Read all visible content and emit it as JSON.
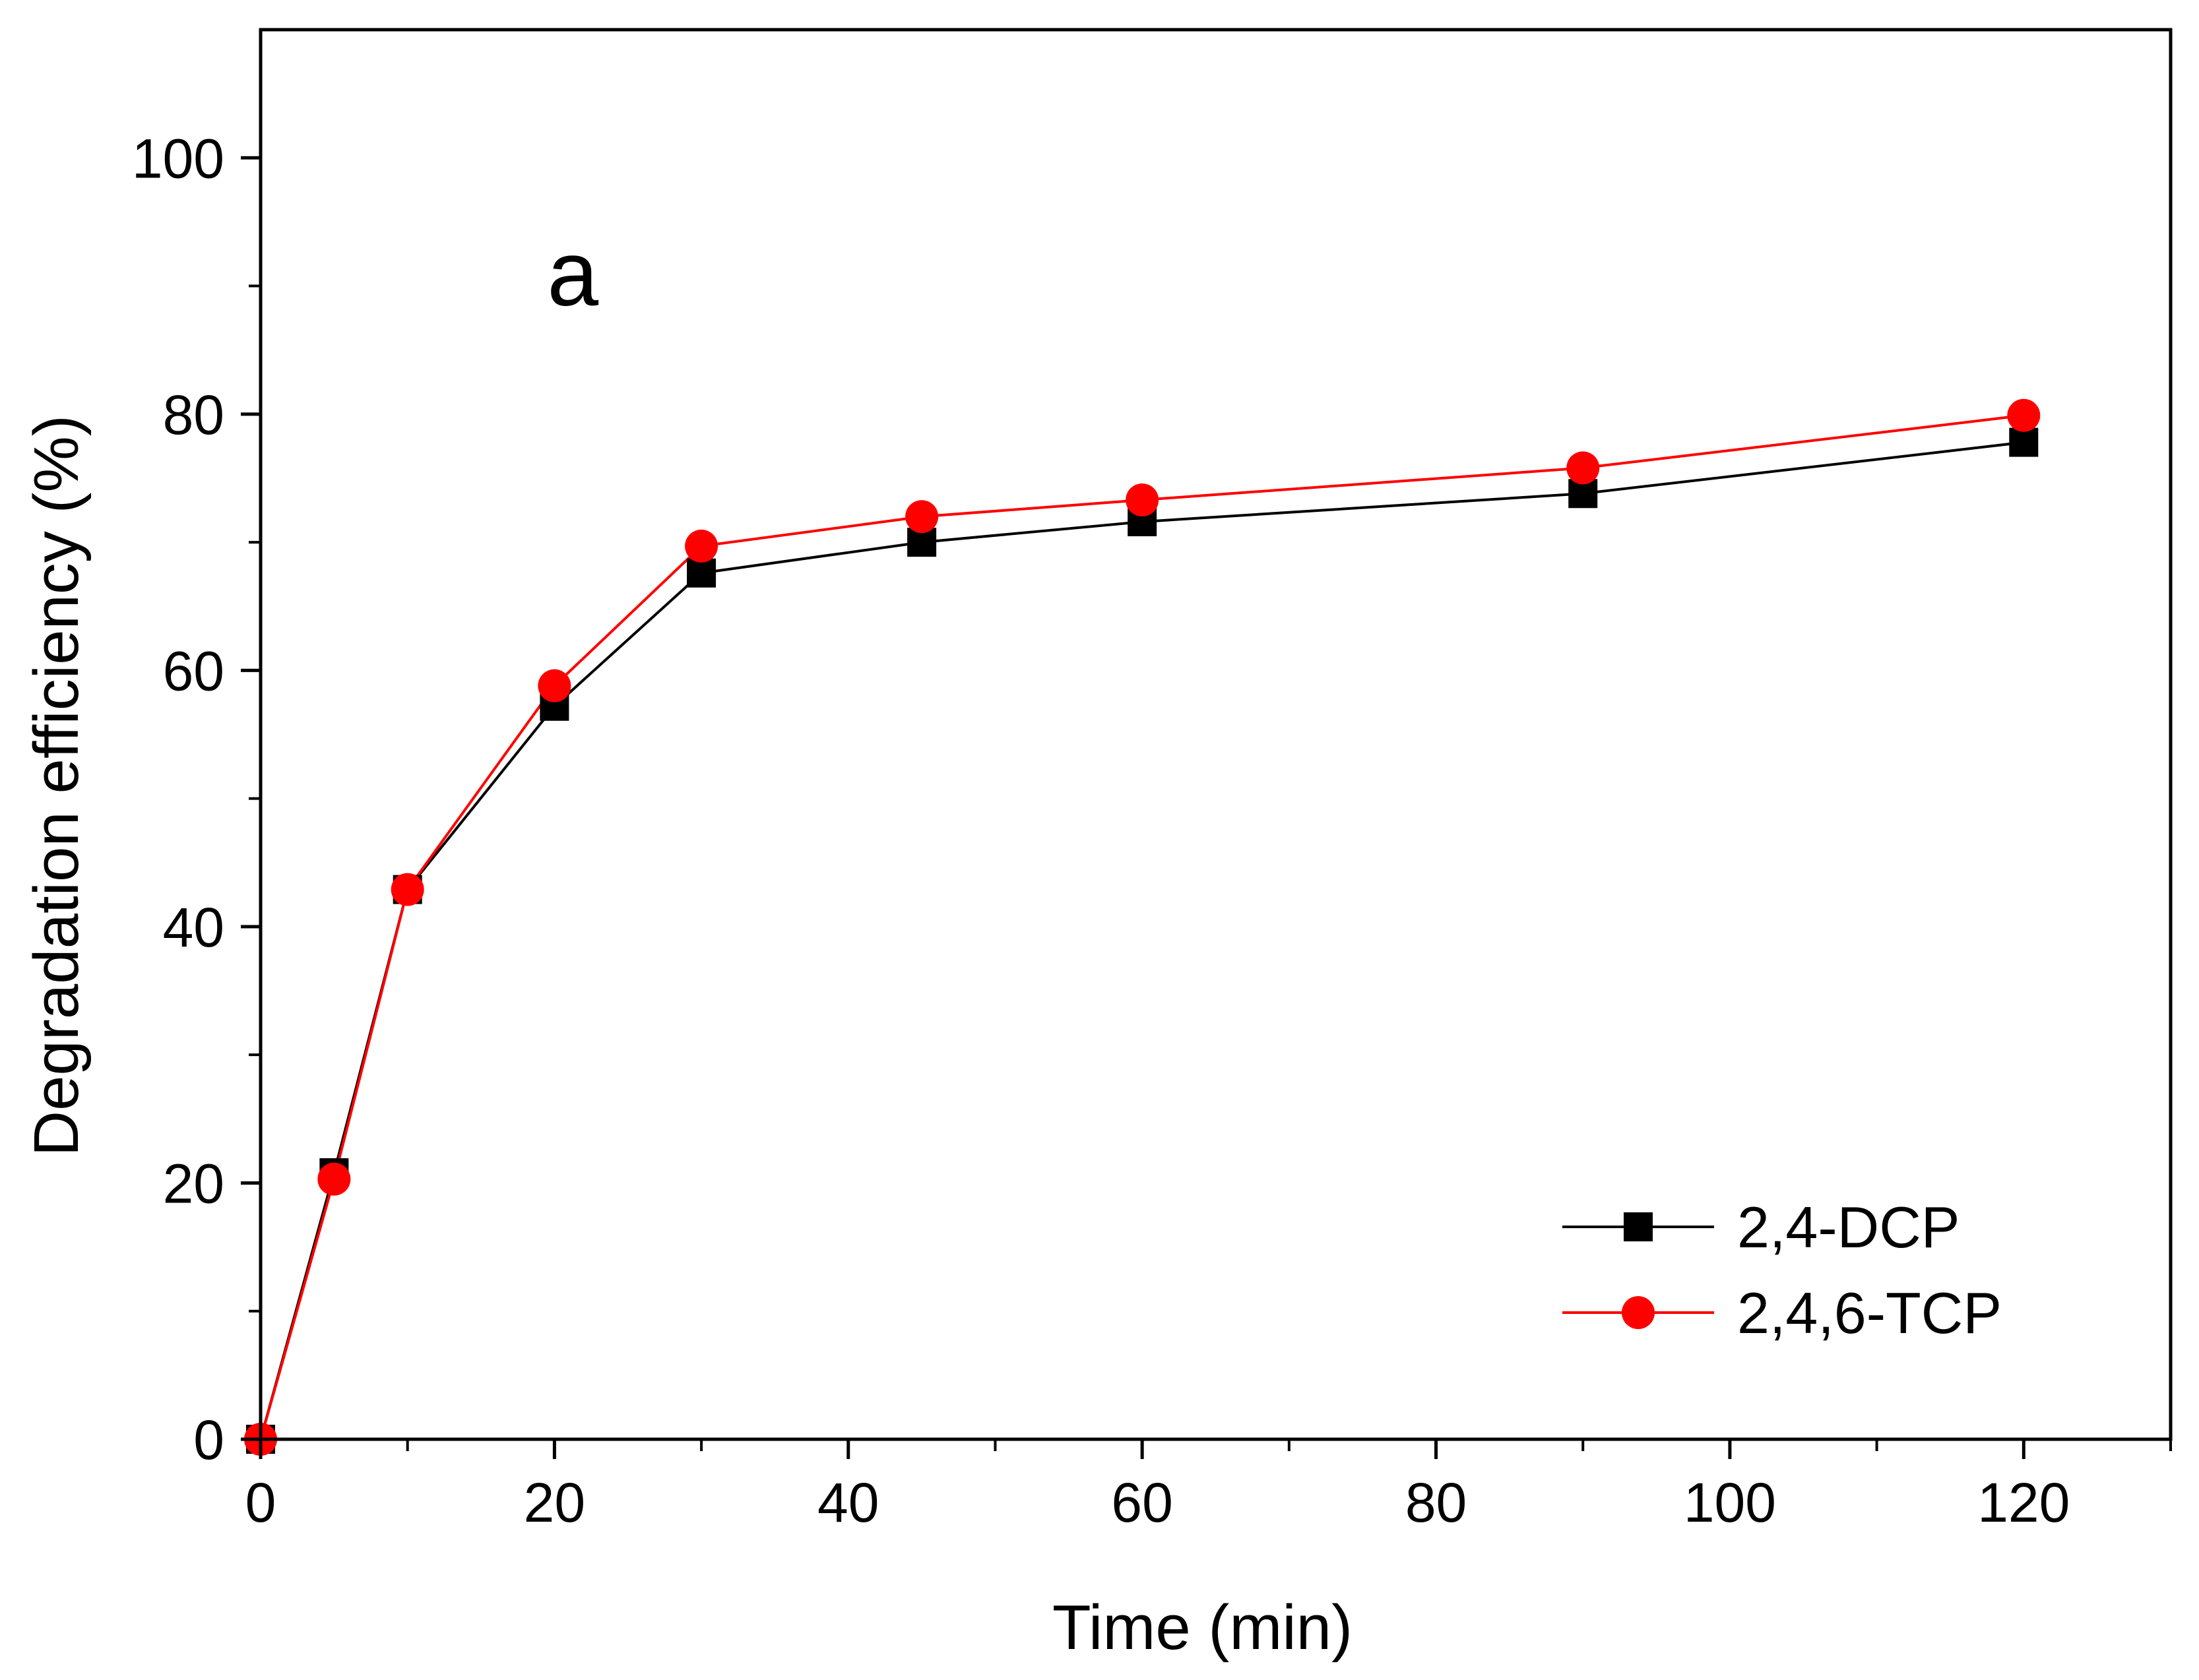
{
  "chart_data": {
    "type": "line",
    "panel_label": "a",
    "xlabel": "Time (min)",
    "ylabel": "Degradation efficiency (%)",
    "xlim": [
      0,
      130
    ],
    "ylim": [
      0,
      110
    ],
    "xticks": [
      0,
      20,
      40,
      60,
      80,
      100,
      120
    ],
    "xticks_minor": [
      10,
      30,
      50,
      70,
      90,
      110,
      130
    ],
    "yticks": [
      0,
      20,
      40,
      60,
      80,
      100
    ],
    "yticks_minor": [
      10,
      30,
      50,
      70,
      90
    ],
    "xtick_labels": [
      "0",
      "20",
      "40",
      "60",
      "80",
      "100",
      "120"
    ],
    "ytick_labels": [
      "0",
      "20",
      "40",
      "60",
      "80",
      "100"
    ],
    "grid": false,
    "legend_position": "bottom-right",
    "x": [
      0,
      5,
      10,
      20,
      30,
      45,
      60,
      90,
      120
    ],
    "series": [
      {
        "name": "2,4-DCP",
        "marker": "square",
        "color": "#000000",
        "values": [
          0,
          20.8,
          42.9,
          57.2,
          67.6,
          70.0,
          71.6,
          73.8,
          77.8
        ]
      },
      {
        "name": "2,4,6-TCP",
        "marker": "circle",
        "color": "#ff0000",
        "values": [
          0,
          20.3,
          42.9,
          58.8,
          69.7,
          72.0,
          73.3,
          75.8,
          79.9
        ]
      }
    ]
  }
}
